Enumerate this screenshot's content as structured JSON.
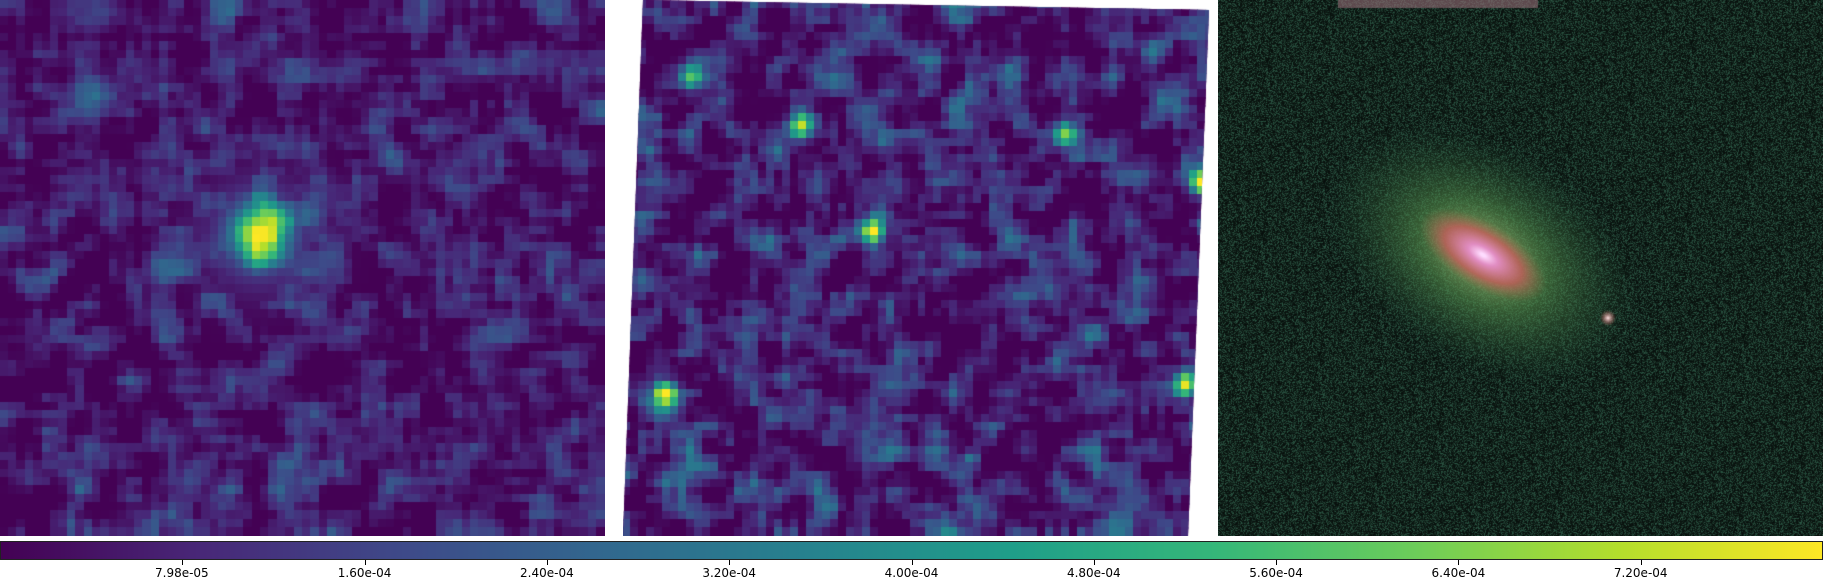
{
  "panels": [
    {
      "name": "left-heatmap-panel",
      "colormap": "viridis"
    },
    {
      "name": "middle-heatmap-panel",
      "colormap": "viridis"
    },
    {
      "name": "right-galaxy-composite-panel",
      "colormap": "rgb-composite"
    }
  ],
  "colorbar": {
    "colormap": "viridis",
    "min": 0.0,
    "max": 0.0008,
    "ticks": [
      {
        "value": 7.98e-05,
        "label": "7.98e-05"
      },
      {
        "value": 0.00016,
        "label": "1.60e-04"
      },
      {
        "value": 0.00024,
        "label": "2.40e-04"
      },
      {
        "value": 0.00032,
        "label": "3.20e-04"
      },
      {
        "value": 0.0004,
        "label": "4.00e-04"
      },
      {
        "value": 0.00048,
        "label": "4.80e-04"
      },
      {
        "value": 0.00056,
        "label": "5.60e-04"
      },
      {
        "value": 0.00064,
        "label": "6.40e-04"
      },
      {
        "value": 0.00072,
        "label": "7.20e-04"
      }
    ]
  }
}
